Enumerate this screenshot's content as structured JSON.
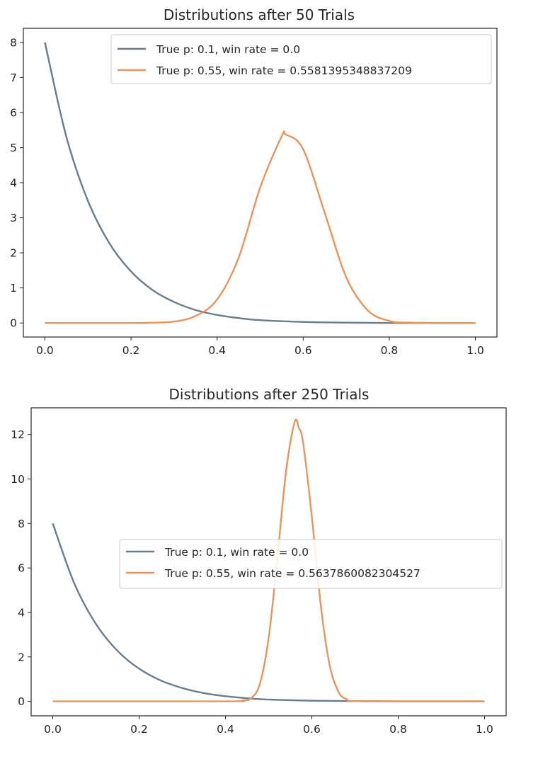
{
  "figure": {
    "background": "#ffffff",
    "axis_color": "#262626"
  },
  "chart_data": [
    {
      "type": "line",
      "title": "Distributions after 50 Trials",
      "xlabel": "",
      "ylabel": "",
      "xlim": [
        -0.05,
        1.05
      ],
      "ylim": [
        -0.4,
        8.4
      ],
      "xticks": [
        0.0,
        0.2,
        0.4,
        0.6,
        0.8,
        1.0
      ],
      "xtick_labels": [
        "0.0",
        "0.2",
        "0.4",
        "0.6",
        "0.8",
        "1.0"
      ],
      "yticks": [
        0,
        1,
        2,
        3,
        4,
        5,
        6,
        7,
        8
      ],
      "ytick_labels": [
        "0",
        "1",
        "2",
        "3",
        "4",
        "5",
        "6",
        "7",
        "8"
      ],
      "grid": false,
      "legend_position": "top-right",
      "series": [
        {
          "name": "True p: 0.1, win rate = 0.0",
          "color": "#6b7b8c",
          "x": [
            0.0,
            0.05,
            0.1,
            0.15,
            0.2,
            0.25,
            0.3,
            0.35,
            0.4,
            0.45,
            0.5,
            0.6,
            0.7,
            0.8,
            0.9,
            1.0
          ],
          "y": [
            8.0,
            5.3,
            3.48,
            2.27,
            1.47,
            0.94,
            0.6,
            0.37,
            0.23,
            0.14,
            0.08,
            0.03,
            0.01,
            0.0,
            0.0,
            0.0
          ]
        },
        {
          "name": "True p: 0.55, win rate = 0.5581395348837209",
          "color": "#e8955a",
          "x": [
            0.0,
            0.2,
            0.25,
            0.3,
            0.35,
            0.4,
            0.45,
            0.5,
            0.55,
            0.56,
            0.6,
            0.65,
            0.7,
            0.75,
            0.8,
            0.85,
            1.0
          ],
          "y": [
            0.0,
            0.0,
            0.01,
            0.04,
            0.2,
            0.67,
            1.86,
            3.86,
            5.32,
            5.37,
            4.95,
            3.14,
            1.3,
            0.36,
            0.06,
            0.01,
            0.0
          ]
        }
      ]
    },
    {
      "type": "line",
      "title": "Distributions after 250 Trials",
      "xlabel": "",
      "ylabel": "",
      "xlim": [
        -0.05,
        1.05
      ],
      "ylim": [
        -0.65,
        13.2
      ],
      "xticks": [
        0.0,
        0.2,
        0.4,
        0.6,
        0.8,
        1.0
      ],
      "xtick_labels": [
        "0.0",
        "0.2",
        "0.4",
        "0.6",
        "0.8",
        "1.0"
      ],
      "yticks": [
        0,
        2,
        4,
        6,
        8,
        10,
        12
      ],
      "ytick_labels": [
        "0",
        "2",
        "4",
        "6",
        "8",
        "10",
        "12"
      ],
      "grid": false,
      "legend_position": "center-right",
      "series": [
        {
          "name": "True p: 0.1, win rate = 0.0",
          "color": "#6b7b8c",
          "x": [
            0.0,
            0.05,
            0.1,
            0.15,
            0.2,
            0.25,
            0.3,
            0.35,
            0.4,
            0.45,
            0.5,
            0.6,
            0.7,
            0.8,
            0.9,
            1.0
          ],
          "y": [
            8.0,
            5.3,
            3.48,
            2.27,
            1.47,
            0.94,
            0.6,
            0.37,
            0.23,
            0.14,
            0.08,
            0.03,
            0.01,
            0.0,
            0.0,
            0.0
          ]
        },
        {
          "name": "True p: 0.55, win rate = 0.5637860082304527",
          "color": "#e8955a",
          "x": [
            0.0,
            0.4,
            0.44,
            0.46,
            0.48,
            0.5,
            0.52,
            0.54,
            0.56,
            0.57,
            0.58,
            0.6,
            0.62,
            0.64,
            0.66,
            0.68,
            0.72,
            1.0
          ],
          "y": [
            0.0,
            0.0,
            0.04,
            0.15,
            0.8,
            2.85,
            6.4,
            10.3,
            12.55,
            12.3,
            11.6,
            8.3,
            4.45,
            1.75,
            0.5,
            0.1,
            0.0,
            0.0
          ]
        }
      ]
    }
  ]
}
